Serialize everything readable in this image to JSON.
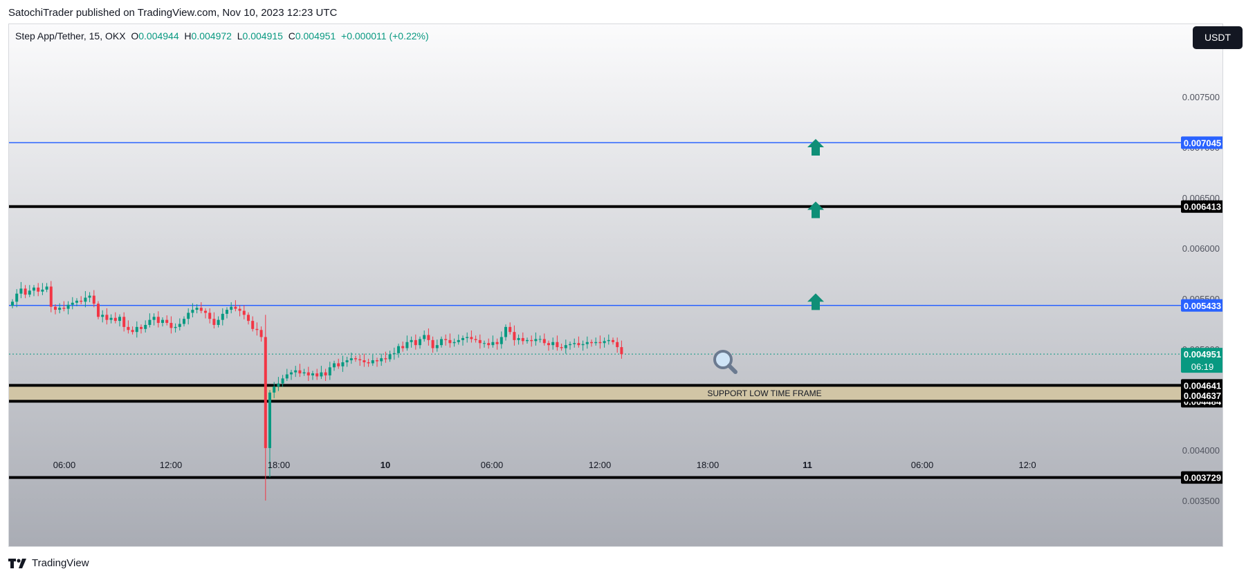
{
  "header": {
    "publisher_text": "SatochiTrader published on TradingView.com, Nov 10, 2023 12:23 UTC"
  },
  "legend": {
    "symbol": "Step App/Tether, 15, OKX",
    "open_label": "O",
    "open": "0.004944",
    "high_label": "H",
    "high": "0.004972",
    "low_label": "L",
    "low": "0.004915",
    "close_label": "C",
    "close": "0.004951",
    "change": "+0.000011 (+0.22%)"
  },
  "currency_button": "USDT",
  "footer": {
    "brand": "TradingView"
  },
  "colors": {
    "up": "#089981",
    "down": "#f23645",
    "blue_line": "#2962ff",
    "black_line": "#000000",
    "zone": "#d1c5a5",
    "arrow": "#0f8f77"
  },
  "chart_data": {
    "type": "candlestick",
    "y_ticks": [
      "0.007500",
      "0.007000",
      "0.006500",
      "0.006000",
      "0.005500",
      "0.005000",
      "0.004500",
      "0.004000",
      "0.003500"
    ],
    "x_ticks": [
      {
        "label": "06:00",
        "bold": false
      },
      {
        "label": "12:00",
        "bold": false
      },
      {
        "label": "18:00",
        "bold": false
      },
      {
        "label": "10",
        "bold": true
      },
      {
        "label": "06:00",
        "bold": false
      },
      {
        "label": "12:00",
        "bold": false
      },
      {
        "label": "18:00",
        "bold": false
      },
      {
        "label": "11",
        "bold": true
      },
      {
        "label": "06:00",
        "bold": false
      },
      {
        "label": "12:0",
        "bold": false
      }
    ],
    "horizontal_levels": [
      {
        "value": "0.007045",
        "price": 0.007045,
        "style": "blue"
      },
      {
        "value": "0.006413",
        "price": 0.006413,
        "style": "black"
      },
      {
        "value": "0.005433",
        "price": 0.005433,
        "style": "blue"
      },
      {
        "value": "0.004641",
        "price": 0.004641,
        "style": "black"
      },
      {
        "value": "0.004484",
        "price": 0.004484,
        "style": "black"
      },
      {
        "value": "0.003729",
        "price": 0.003729,
        "style": "black"
      }
    ],
    "extra_price_labels": [
      {
        "value": "0.004637",
        "price": 0.004637
      }
    ],
    "last_price": {
      "value": "0.004951",
      "price": 0.004951,
      "countdown": "06:19"
    },
    "support_zone": {
      "top": 0.004641,
      "bottom": 0.004484,
      "label": "SUPPORT LOW TIME FRAME"
    },
    "arrows_up_at": [
      0.007,
      0.00638,
      0.00547
    ],
    "candle_closes": [
      0.00547,
      0.00555,
      0.0056,
      0.00554,
      0.00558,
      0.00561,
      0.00557,
      0.00559,
      0.00562,
      0.00542,
      0.00539,
      0.00541,
      0.0054,
      0.00544,
      0.00546,
      0.00548,
      0.00547,
      0.00551,
      0.00553,
      0.00545,
      0.00532,
      0.00534,
      0.00529,
      0.00531,
      0.00528,
      0.00532,
      0.00522,
      0.00519,
      0.00517,
      0.00522,
      0.0052,
      0.00524,
      0.00529,
      0.00532,
      0.00526,
      0.00529,
      0.00526,
      0.00521,
      0.00522,
      0.00525,
      0.0053,
      0.00536,
      0.00539,
      0.00541,
      0.00538,
      0.00536,
      0.0053,
      0.00524,
      0.00529,
      0.00535,
      0.00539,
      0.00542,
      0.0054,
      0.00538,
      0.00534,
      0.00528,
      0.0052,
      0.00519,
      0.00512,
      0.00402,
      0.00457,
      0.00463,
      0.00466,
      0.00471,
      0.00475,
      0.00477,
      0.00479,
      0.00476,
      0.00477,
      0.00474,
      0.00476,
      0.00473,
      0.00477,
      0.00474,
      0.00482,
      0.00486,
      0.00483,
      0.00487,
      0.00489,
      0.00491,
      0.0049,
      0.00489,
      0.00487,
      0.00486,
      0.00489,
      0.00488,
      0.00491,
      0.0049,
      0.00495,
      0.00496,
      0.00503,
      0.00501,
      0.00507,
      0.00509,
      0.00504,
      0.0051,
      0.00514,
      0.00509,
      0.00501,
      0.00504,
      0.0051,
      0.00509,
      0.00506,
      0.00507,
      0.00509,
      0.00511,
      0.00512,
      0.0051,
      0.00509,
      0.00506,
      0.00506,
      0.00504,
      0.00507,
      0.00505,
      0.00512,
      0.00522,
      0.00517,
      0.00509,
      0.00511,
      0.00508,
      0.00509,
      0.00508,
      0.0051,
      0.0051,
      0.00506,
      0.00504,
      0.00507,
      0.00502,
      0.00501,
      0.00504,
      0.00505,
      0.00506,
      0.00504,
      0.00505,
      0.00507,
      0.00506,
      0.00507,
      0.00506,
      0.00508,
      0.00509,
      0.00507,
      0.00502,
      0.00495
    ]
  }
}
